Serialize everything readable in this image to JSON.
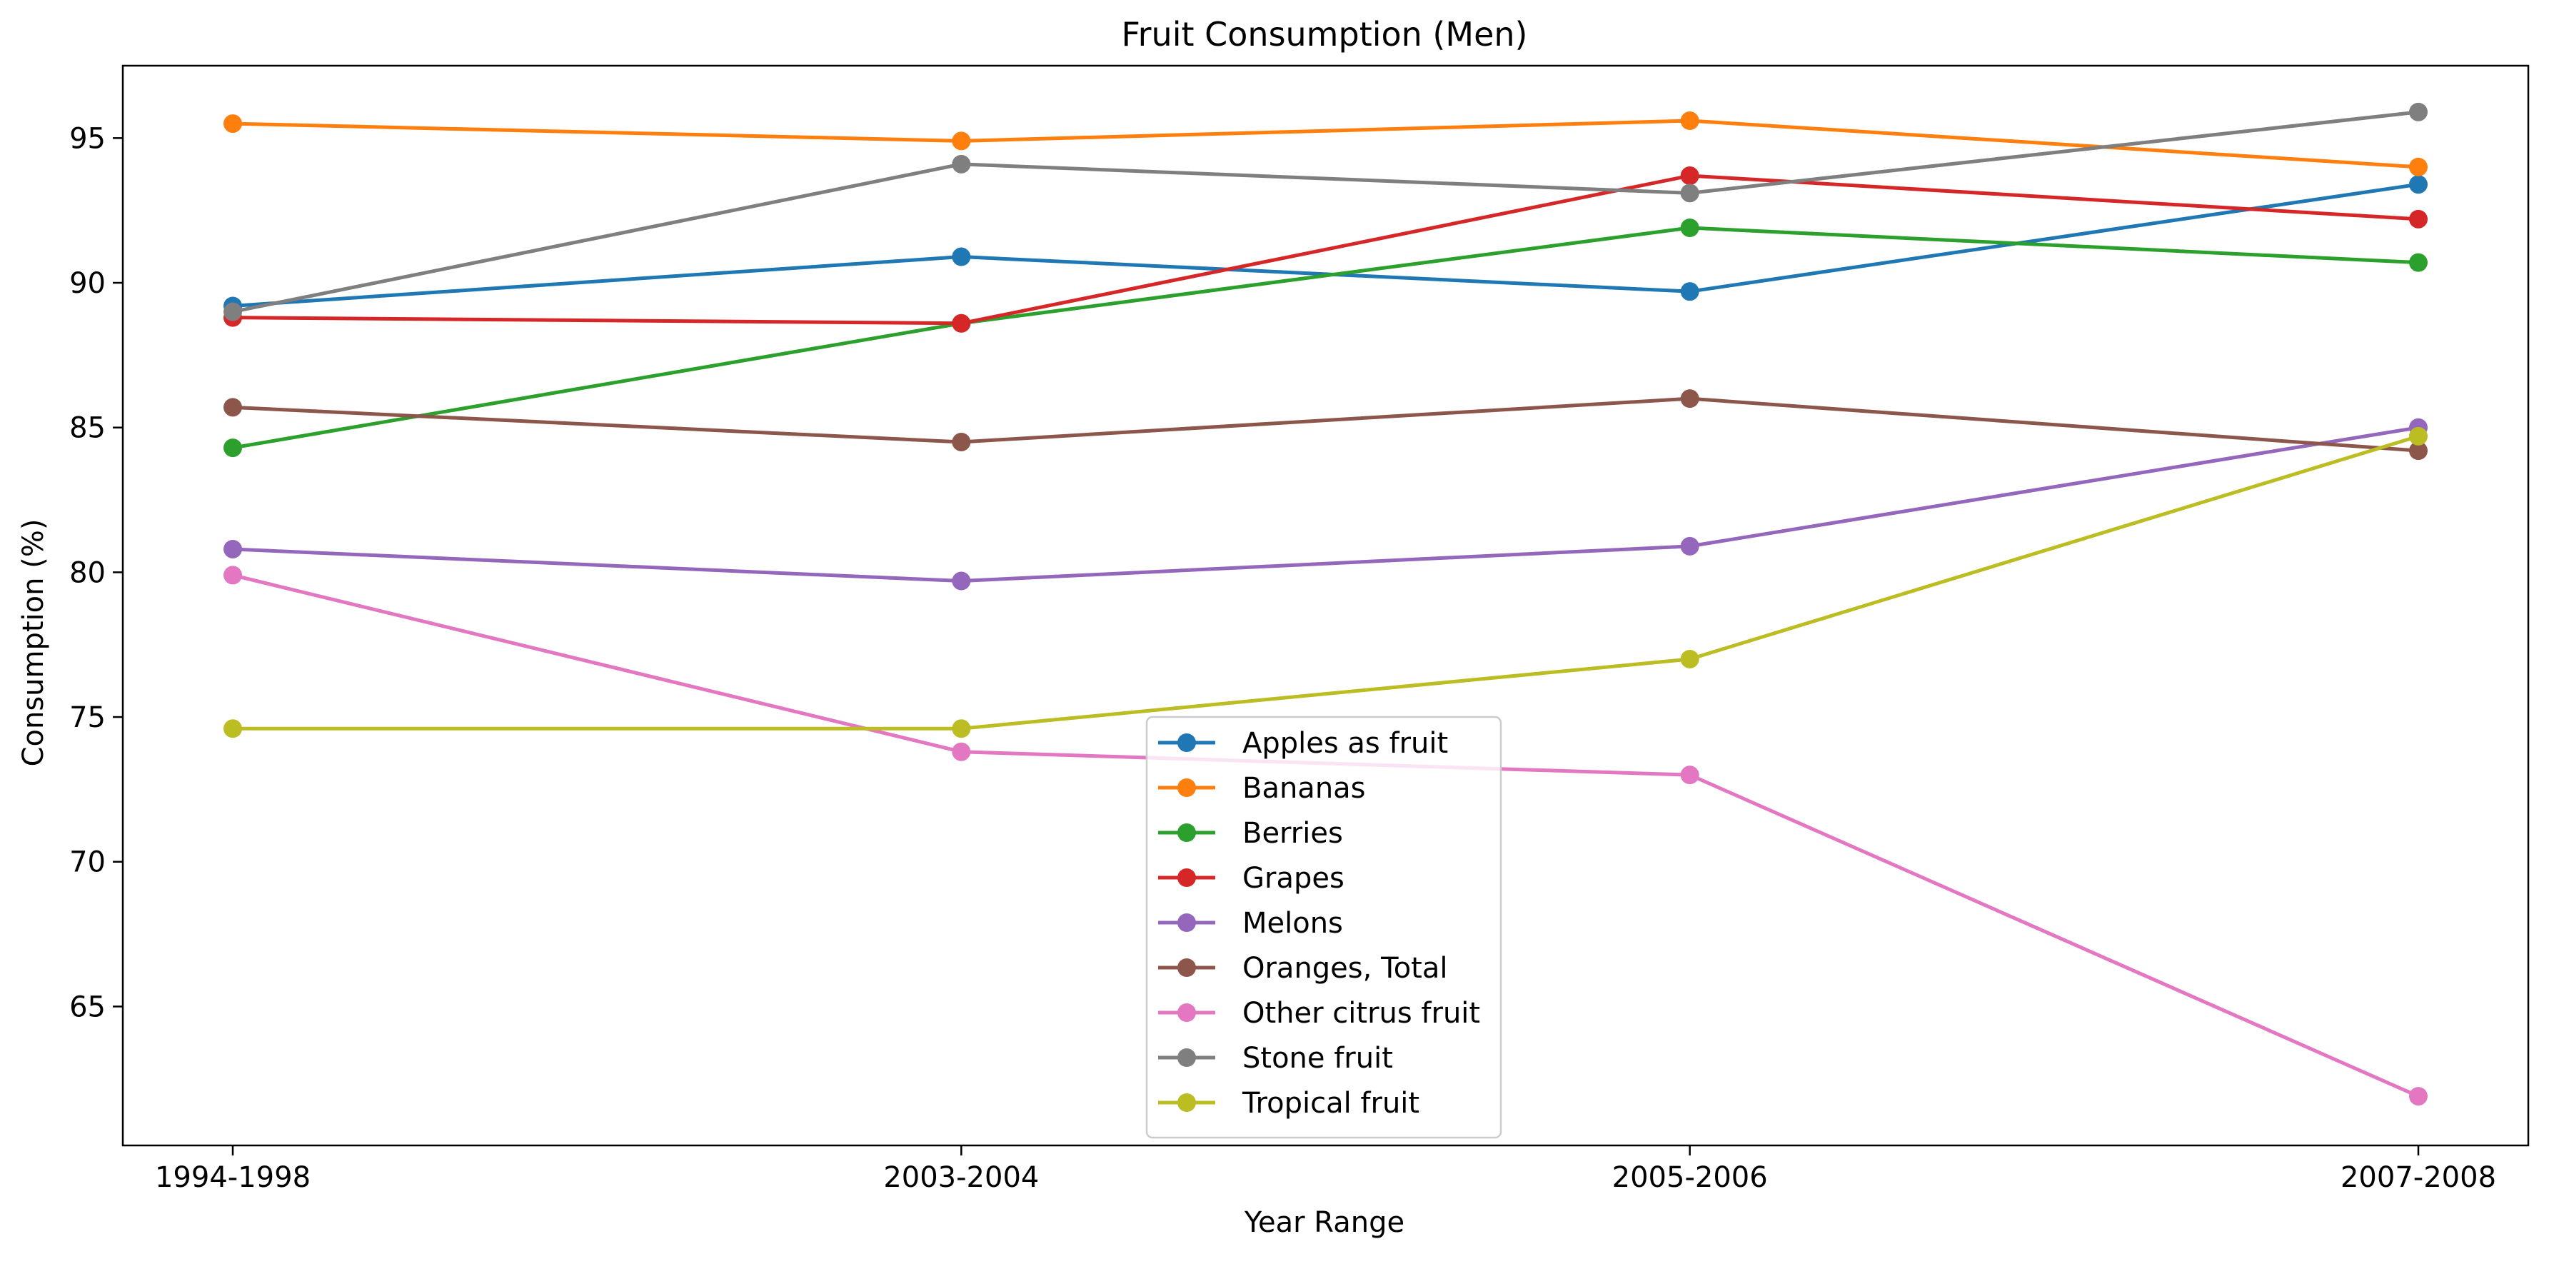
{
  "chart_data": {
    "type": "line",
    "title": "Fruit Consumption (Men)",
    "xlabel": "Year Range",
    "ylabel": "Consumption (%)",
    "categories": [
      "1994-1998",
      "2003-2004",
      "2005-2006",
      "2007-2008"
    ],
    "ylim": [
      60.2,
      97.5
    ],
    "yticks": [
      65,
      70,
      75,
      80,
      85,
      90,
      95
    ],
    "grid": false,
    "legend_position": "lower center",
    "series": [
      {
        "name": "Apples as fruit",
        "color": "#1f77b4",
        "values": [
          89.2,
          90.9,
          89.7,
          93.4
        ]
      },
      {
        "name": "Bananas",
        "color": "#ff7f0e",
        "values": [
          95.5,
          94.9,
          95.6,
          94.0
        ]
      },
      {
        "name": "Berries",
        "color": "#2ca02c",
        "values": [
          84.3,
          88.6,
          91.9,
          90.7
        ]
      },
      {
        "name": "Grapes",
        "color": "#d62728",
        "values": [
          88.8,
          88.6,
          93.7,
          92.2
        ]
      },
      {
        "name": "Melons",
        "color": "#9467bd",
        "values": [
          80.8,
          79.7,
          80.9,
          85.0
        ]
      },
      {
        "name": "Oranges, Total",
        "color": "#8c564b",
        "values": [
          85.7,
          84.5,
          86.0,
          84.2
        ]
      },
      {
        "name": "Other citrus fruit",
        "color": "#e377c2",
        "values": [
          79.9,
          73.8,
          73.0,
          61.9
        ]
      },
      {
        "name": "Stone fruit",
        "color": "#7f7f7f",
        "values": [
          89.0,
          94.1,
          93.1,
          95.9
        ]
      },
      {
        "name": "Tropical fruit",
        "color": "#bcbd22",
        "values": [
          74.6,
          74.6,
          77.0,
          84.7
        ]
      }
    ]
  }
}
